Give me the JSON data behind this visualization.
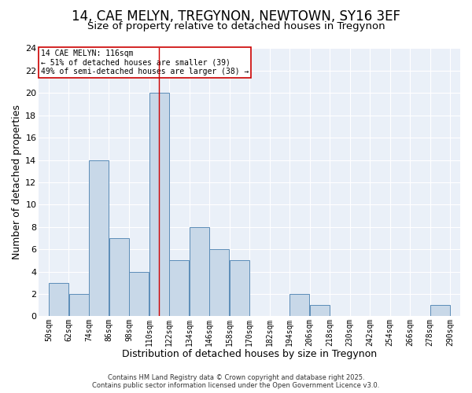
{
  "title": "14, CAE MELYN, TREGYNON, NEWTOWN, SY16 3EF",
  "subtitle": "Size of property relative to detached houses in Tregynon",
  "xlabel": "Distribution of detached houses by size in Tregynon",
  "ylabel": "Number of detached properties",
  "bin_labels": [
    "50sqm",
    "62sqm",
    "74sqm",
    "86sqm",
    "98sqm",
    "110sqm",
    "122sqm",
    "134sqm",
    "146sqm",
    "158sqm",
    "170sqm",
    "182sqm",
    "194sqm",
    "206sqm",
    "218sqm",
    "230sqm",
    "242sqm",
    "254sqm",
    "266sqm",
    "278sqm",
    "290sqm"
  ],
  "bin_edges": [
    50,
    62,
    74,
    86,
    98,
    110,
    122,
    134,
    146,
    158,
    170,
    182,
    194,
    206,
    218,
    230,
    242,
    254,
    266,
    278,
    290
  ],
  "bar_heights": [
    3,
    2,
    14,
    7,
    4,
    20,
    5,
    8,
    6,
    5,
    0,
    0,
    2,
    1,
    0,
    0,
    0,
    0,
    0,
    1,
    0
  ],
  "bar_color": "#c8d8e8",
  "bar_edge_color": "#5b8db8",
  "property_line_x": 116,
  "property_line_color": "#cc0000",
  "annotation_text": "14 CAE MELYN: 116sqm\n← 51% of detached houses are smaller (39)\n49% of semi-detached houses are larger (38) →",
  "annotation_box_color": "#cc0000",
  "ylim": [
    0,
    24
  ],
  "yticks": [
    0,
    2,
    4,
    6,
    8,
    10,
    12,
    14,
    16,
    18,
    20,
    22,
    24
  ],
  "bg_color": "#eaf0f8",
  "footer_line1": "Contains HM Land Registry data © Crown copyright and database right 2025.",
  "footer_line2": "Contains public sector information licensed under the Open Government Licence v3.0.",
  "title_fontsize": 12,
  "subtitle_fontsize": 9.5
}
